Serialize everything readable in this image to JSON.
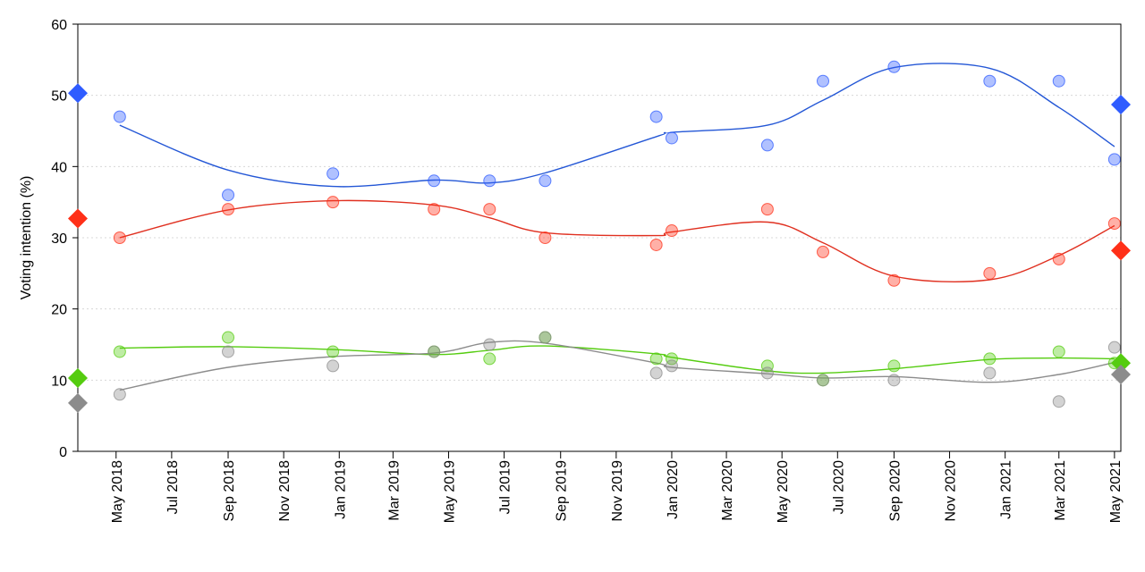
{
  "chart_data": {
    "type": "scatter",
    "ylabel": "Voting intention (%)",
    "xlabel": "",
    "ylim": [
      0,
      60
    ],
    "yticks": [
      0,
      10,
      20,
      30,
      40,
      50,
      60
    ],
    "xlim": [
      "2018-03-20",
      "2021-05-08"
    ],
    "xticks": [
      {
        "date": "2018-05-01",
        "label": "May 2018"
      },
      {
        "date": "2018-07-01",
        "label": "Jul 2018"
      },
      {
        "date": "2018-09-01",
        "label": "Sep 2018"
      },
      {
        "date": "2018-11-01",
        "label": "Nov 2018"
      },
      {
        "date": "2019-01-01",
        "label": "Jan 2019"
      },
      {
        "date": "2019-03-01",
        "label": "Mar 2019"
      },
      {
        "date": "2019-05-01",
        "label": "May 2019"
      },
      {
        "date": "2019-07-01",
        "label": "Jul 2019"
      },
      {
        "date": "2019-09-01",
        "label": "Sep 2019"
      },
      {
        "date": "2019-11-01",
        "label": "Nov 2019"
      },
      {
        "date": "2020-01-01",
        "label": "Jan 2020"
      },
      {
        "date": "2020-03-01",
        "label": "Mar 2020"
      },
      {
        "date": "2020-05-01",
        "label": "May 2020"
      },
      {
        "date": "2020-07-01",
        "label": "Jul 2020"
      },
      {
        "date": "2020-09-01",
        "label": "Sep 2020"
      },
      {
        "date": "2020-11-01",
        "label": "Nov 2020"
      },
      {
        "date": "2021-01-01",
        "label": "Jan 2021"
      },
      {
        "date": "2021-03-01",
        "label": "Mar 2021"
      },
      {
        "date": "2021-05-01",
        "label": "May 2021"
      }
    ],
    "grid": "horizontal dotted",
    "series": [
      {
        "color": "#2457d6",
        "marker_color": "#2f5cff",
        "polls": [
          [
            "2018-05-05",
            47
          ],
          [
            "2018-09-01",
            36
          ],
          [
            "2018-12-25",
            39
          ],
          [
            "2019-04-15",
            38
          ],
          [
            "2019-06-15",
            38
          ],
          [
            "2019-08-15",
            38
          ],
          [
            "2019-12-15",
            47
          ],
          [
            "2020-01-01",
            44
          ],
          [
            "2020-04-15",
            43
          ],
          [
            "2020-06-15",
            52
          ],
          [
            "2020-09-01",
            54
          ],
          [
            "2020-12-15",
            52
          ],
          [
            "2021-03-01",
            52
          ],
          [
            "2021-05-01",
            41
          ]
        ],
        "trend": [
          [
            "2018-05-05",
            45.8
          ],
          [
            "2018-09-01",
            39.5
          ],
          [
            "2018-12-25",
            37.2
          ],
          [
            "2019-04-15",
            38.1
          ],
          [
            "2019-06-15",
            37.7
          ],
          [
            "2019-08-15",
            39.1
          ],
          [
            "2019-12-15",
            44.2
          ],
          [
            "2020-01-01",
            44.8
          ],
          [
            "2020-04-15",
            45.8
          ],
          [
            "2020-06-15",
            49.3
          ],
          [
            "2020-09-01",
            53.9
          ],
          [
            "2020-12-15",
            53.8
          ],
          [
            "2021-03-01",
            48.3
          ],
          [
            "2021-05-01",
            42.8
          ]
        ],
        "election_start": [
          "2018-03-20",
          50.3
        ],
        "election_end": [
          "2021-05-08",
          48.7
        ]
      },
      {
        "color": "#e03020",
        "marker_color": "#ff3018",
        "polls": [
          [
            "2018-05-05",
            30
          ],
          [
            "2018-09-01",
            34
          ],
          [
            "2018-12-25",
            35
          ],
          [
            "2019-04-15",
            34
          ],
          [
            "2019-06-15",
            34
          ],
          [
            "2019-08-15",
            30
          ],
          [
            "2019-12-15",
            29
          ],
          [
            "2020-01-01",
            31
          ],
          [
            "2020-04-15",
            34
          ],
          [
            "2020-06-15",
            28
          ],
          [
            "2020-09-01",
            24
          ],
          [
            "2020-12-15",
            25
          ],
          [
            "2021-03-01",
            27
          ],
          [
            "2021-05-01",
            32
          ]
        ],
        "trend": [
          [
            "2018-05-05",
            30.0
          ],
          [
            "2018-09-01",
            33.9
          ],
          [
            "2018-12-25",
            35.2
          ],
          [
            "2019-04-15",
            34.6
          ],
          [
            "2019-06-15",
            32.8
          ],
          [
            "2019-08-15",
            30.7
          ],
          [
            "2019-12-15",
            30.3
          ],
          [
            "2020-01-01",
            30.8
          ],
          [
            "2020-04-15",
            32.2
          ],
          [
            "2020-06-15",
            29.3
          ],
          [
            "2020-09-01",
            24.6
          ],
          [
            "2020-12-15",
            24.1
          ],
          [
            "2021-03-01",
            27.5
          ],
          [
            "2021-05-01",
            31.7
          ]
        ],
        "election_start": [
          "2018-03-20",
          32.7
        ],
        "election_end": [
          "2021-05-08",
          28.2
        ]
      },
      {
        "color": "#55cc10",
        "marker_color": "#55cc10",
        "polls": [
          [
            "2018-05-05",
            14
          ],
          [
            "2018-09-01",
            16
          ],
          [
            "2018-12-25",
            14
          ],
          [
            "2019-04-15",
            14
          ],
          [
            "2019-06-15",
            13
          ],
          [
            "2019-08-15",
            16
          ],
          [
            "2019-12-15",
            13
          ],
          [
            "2020-01-01",
            13
          ],
          [
            "2020-04-15",
            12
          ],
          [
            "2020-06-15",
            10
          ],
          [
            "2020-09-01",
            12
          ],
          [
            "2020-12-15",
            13
          ],
          [
            "2021-03-01",
            14
          ],
          [
            "2021-05-01",
            12.4
          ]
        ],
        "trend": [
          [
            "2018-05-05",
            14.5
          ],
          [
            "2018-09-01",
            14.7
          ],
          [
            "2018-12-25",
            14.3
          ],
          [
            "2019-04-15",
            13.6
          ],
          [
            "2019-06-15",
            14.2
          ],
          [
            "2019-08-15",
            14.8
          ],
          [
            "2019-12-15",
            13.7
          ],
          [
            "2020-01-01",
            13.2
          ],
          [
            "2020-04-15",
            11.3
          ],
          [
            "2020-06-15",
            11.0
          ],
          [
            "2020-09-01",
            11.6
          ],
          [
            "2020-12-15",
            12.9
          ],
          [
            "2021-03-01",
            13.1
          ],
          [
            "2021-05-01",
            13.0
          ]
        ],
        "election_start": [
          "2018-03-20",
          10.3
        ],
        "election_end": [
          "2021-05-08",
          12.4
        ]
      },
      {
        "color": "#8c8c8c",
        "marker_color": "#8c8c8c",
        "polls": [
          [
            "2018-05-05",
            8
          ],
          [
            "2018-09-01",
            14
          ],
          [
            "2018-12-25",
            12
          ],
          [
            "2019-04-15",
            14
          ],
          [
            "2019-06-15",
            15
          ],
          [
            "2019-08-15",
            16
          ],
          [
            "2019-12-15",
            11
          ],
          [
            "2020-01-01",
            12
          ],
          [
            "2020-04-15",
            11
          ],
          [
            "2020-06-15",
            10
          ],
          [
            "2020-09-01",
            10
          ],
          [
            "2020-12-15",
            11
          ],
          [
            "2021-03-01",
            7
          ],
          [
            "2021-05-01",
            14.6
          ]
        ],
        "trend": [
          [
            "2018-05-05",
            8.6
          ],
          [
            "2018-09-01",
            11.8
          ],
          [
            "2018-12-25",
            13.3
          ],
          [
            "2019-04-15",
            13.8
          ],
          [
            "2019-06-15",
            15.3
          ],
          [
            "2019-08-15",
            15.2
          ],
          [
            "2019-12-15",
            12.4
          ],
          [
            "2020-01-01",
            11.8
          ],
          [
            "2020-04-15",
            10.9
          ],
          [
            "2020-06-15",
            10.3
          ],
          [
            "2020-09-01",
            10.5
          ],
          [
            "2020-12-15",
            9.7
          ],
          [
            "2021-03-01",
            10.8
          ],
          [
            "2021-05-01",
            12.5
          ]
        ],
        "election_start": [
          "2018-03-20",
          6.8
        ],
        "election_end": [
          "2021-05-08",
          10.8
        ]
      }
    ]
  }
}
